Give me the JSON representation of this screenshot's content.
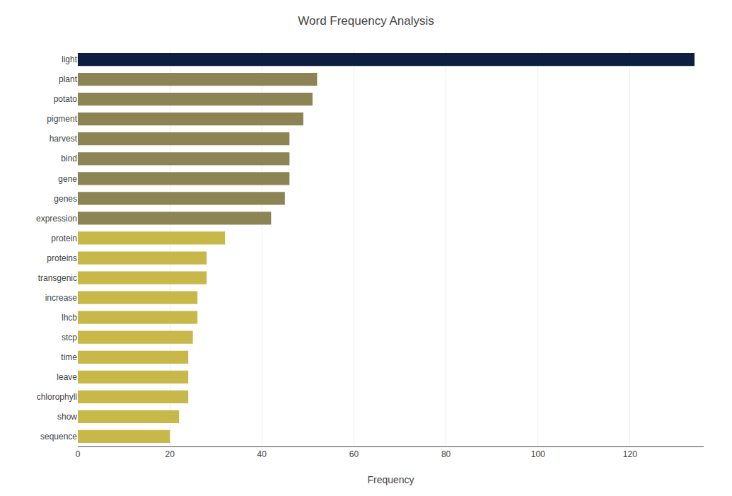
{
  "chart_data": {
    "type": "bar",
    "orientation": "horizontal",
    "title": "Word Frequency Analysis",
    "xlabel": "Frequency",
    "categories": [
      "light",
      "plant",
      "potato",
      "pigment",
      "harvest",
      "bind",
      "gene",
      "genes",
      "expression",
      "protein",
      "proteins",
      "transgenic",
      "increase",
      "lhcb",
      "stcp",
      "time",
      "leave",
      "chlorophyll",
      "show",
      "sequence"
    ],
    "values": [
      134,
      52,
      51,
      49,
      46,
      46,
      46,
      45,
      42,
      32,
      28,
      28,
      26,
      26,
      25,
      24,
      24,
      24,
      22,
      20
    ],
    "colors": [
      "#0d1f40",
      "#8c8455",
      "#8c8455",
      "#8c8455",
      "#8c8455",
      "#8c8455",
      "#8c8455",
      "#8c8455",
      "#8c8455",
      "#c8b84a",
      "#c8b84a",
      "#c8b84a",
      "#c8b84a",
      "#c8b84a",
      "#c8b84a",
      "#c8b84a",
      "#c8b84a",
      "#c8b84a",
      "#c8b84a",
      "#c8b84a"
    ],
    "xlim": [
      0,
      136
    ],
    "xticks": [
      0,
      20,
      40,
      60,
      80,
      100,
      120
    ],
    "grid": true
  }
}
